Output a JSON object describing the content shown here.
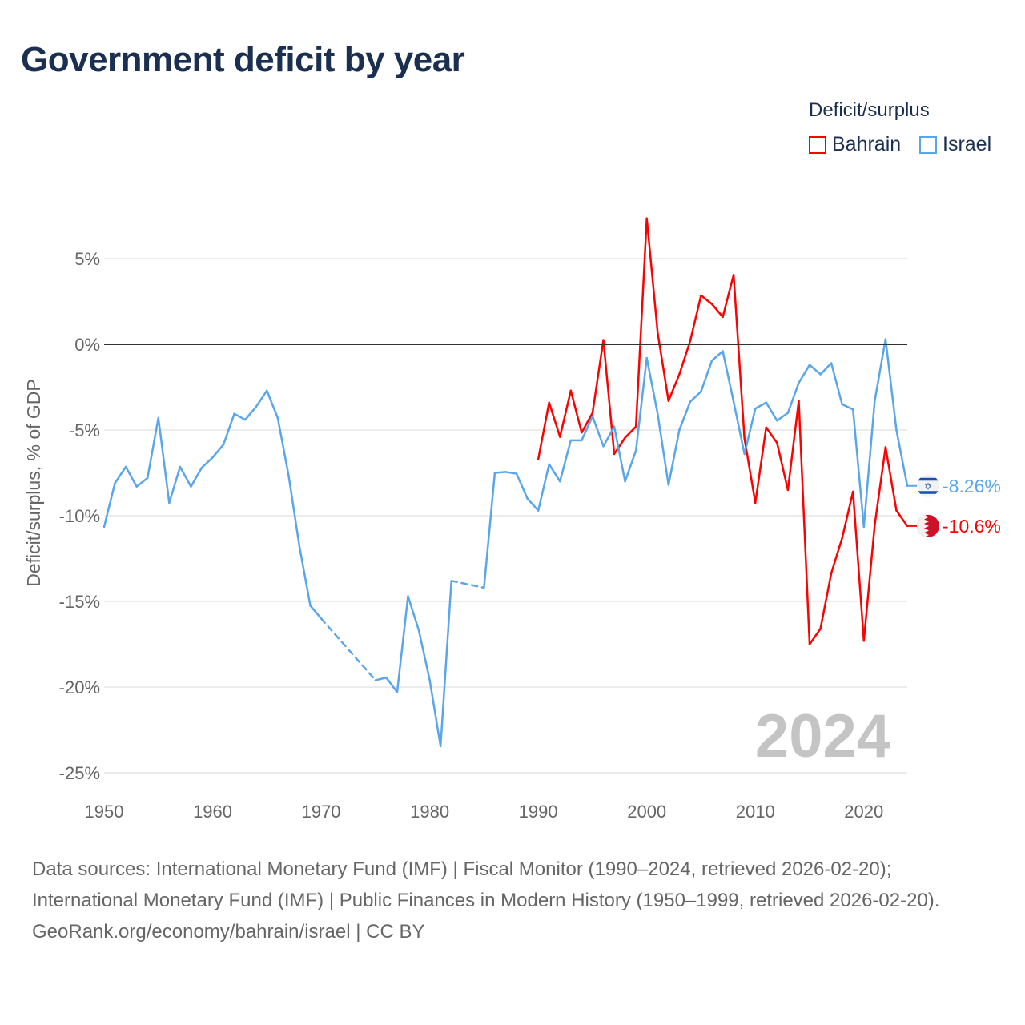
{
  "title": "Government deficit by year",
  "legend": {
    "title": "Deficit/surplus",
    "items": [
      {
        "label": "Bahrain",
        "color": "#ff0000"
      },
      {
        "label": "Israel",
        "color": "#5aa6ea"
      }
    ]
  },
  "watermark_year": "2024",
  "footer": {
    "sources": "Data sources: International Monetary Fund (IMF) | Fiscal Monitor (1990–2024, retrieved 2026-02-20); International Monetary Fund (IMF) | Public Finances in Modern History (1950–1999, retrieved 2026-02-20).",
    "credit": "GeoRank.org/economy/bahrain/israel | CC BY"
  },
  "chart_data": {
    "type": "line",
    "title": "Government deficit by year",
    "xlabel": "",
    "ylabel": "Deficit/surplus, % of GDP",
    "xlim": [
      1950,
      2024
    ],
    "ylim": [
      -25,
      5
    ],
    "x_ticks": [
      1950,
      1960,
      1970,
      1980,
      1990,
      2000,
      2010,
      2020
    ],
    "y_ticks": [
      {
        "v": 5,
        "label": "5%"
      },
      {
        "v": 0,
        "label": "0%"
      },
      {
        "v": -5,
        "label": "-5%"
      },
      {
        "v": -10,
        "label": "-10%"
      },
      {
        "v": -15,
        "label": "-15%"
      },
      {
        "v": -20,
        "label": "-20%"
      },
      {
        "v": -25,
        "label": "-25%"
      }
    ],
    "legend_position": "top-right",
    "series": [
      {
        "name": "Israel",
        "color": "#5aa6ea",
        "end_label": "-8.26%",
        "points": [
          [
            1950,
            -10.65
          ],
          [
            1951,
            -8.1
          ],
          [
            1952,
            -7.15
          ],
          [
            1953,
            -8.3
          ],
          [
            1954,
            -7.8
          ],
          [
            1955,
            -4.3
          ],
          [
            1956,
            -9.25
          ],
          [
            1957,
            -7.15
          ],
          [
            1958,
            -8.3
          ],
          [
            1959,
            -7.2
          ],
          [
            1960,
            -6.6
          ],
          [
            1961,
            -5.85
          ],
          [
            1962,
            -4.05
          ],
          [
            1963,
            -4.4
          ],
          [
            1964,
            -3.65
          ],
          [
            1965,
            -2.7
          ],
          [
            1966,
            -4.3
          ],
          [
            1967,
            -7.65
          ],
          [
            1968,
            -11.8
          ],
          [
            1969,
            -15.25
          ],
          [
            1970,
            -16.0
          ],
          [
            1975,
            -19.6
          ],
          [
            1976,
            -19.45
          ],
          [
            1977,
            -20.3
          ],
          [
            1978,
            -14.7
          ],
          [
            1979,
            -16.7
          ],
          [
            1980,
            -19.6
          ],
          [
            1981,
            -23.45
          ],
          [
            1982,
            -13.8
          ],
          [
            1985,
            -14.2
          ],
          [
            1986,
            -7.5
          ],
          [
            1987,
            -7.45
          ],
          [
            1988,
            -7.55
          ],
          [
            1989,
            -9.0
          ],
          [
            1990,
            -9.7
          ],
          [
            1991,
            -7.0
          ],
          [
            1992,
            -8.0
          ],
          [
            1993,
            -5.6
          ],
          [
            1994,
            -5.6
          ],
          [
            1995,
            -4.2
          ],
          [
            1996,
            -5.95
          ],
          [
            1997,
            -4.8
          ],
          [
            1998,
            -8.0
          ],
          [
            1999,
            -6.2
          ],
          [
            2000,
            -0.8
          ],
          [
            2001,
            -4.05
          ],
          [
            2002,
            -8.2
          ],
          [
            2003,
            -5.0
          ],
          [
            2004,
            -3.35
          ],
          [
            2005,
            -2.75
          ],
          [
            2006,
            -0.95
          ],
          [
            2007,
            -0.4
          ],
          [
            2008,
            -3.35
          ],
          [
            2009,
            -6.4
          ],
          [
            2010,
            -3.75
          ],
          [
            2011,
            -3.4
          ],
          [
            2012,
            -4.45
          ],
          [
            2013,
            -4.0
          ],
          [
            2014,
            -2.25
          ],
          [
            2015,
            -1.2
          ],
          [
            2016,
            -1.75
          ],
          [
            2017,
            -1.1
          ],
          [
            2018,
            -3.5
          ],
          [
            2019,
            -3.8
          ],
          [
            2020,
            -10.65
          ],
          [
            2021,
            -3.3
          ],
          [
            2022,
            0.3
          ],
          [
            2023,
            -5.0
          ],
          [
            2024,
            -8.26
          ]
        ]
      },
      {
        "name": "Bahrain",
        "color": "#ff0000",
        "end_label": "-10.6%",
        "points": [
          [
            1990,
            -6.7
          ],
          [
            1991,
            -3.4
          ],
          [
            1992,
            -5.4
          ],
          [
            1993,
            -2.7
          ],
          [
            1994,
            -5.15
          ],
          [
            1995,
            -4.0
          ],
          [
            1996,
            0.25
          ],
          [
            1997,
            -6.4
          ],
          [
            1998,
            -5.45
          ],
          [
            1999,
            -4.8
          ],
          [
            2000,
            7.35
          ],
          [
            2001,
            0.7
          ],
          [
            2002,
            -3.3
          ],
          [
            2003,
            -1.75
          ],
          [
            2004,
            0.2
          ],
          [
            2005,
            2.85
          ],
          [
            2006,
            2.35
          ],
          [
            2007,
            1.6
          ],
          [
            2008,
            4.05
          ],
          [
            2009,
            -5.5
          ],
          [
            2010,
            -9.25
          ],
          [
            2011,
            -4.85
          ],
          [
            2012,
            -5.75
          ],
          [
            2013,
            -8.5
          ],
          [
            2014,
            -3.3
          ],
          [
            2015,
            -17.5
          ],
          [
            2016,
            -16.6
          ],
          [
            2017,
            -13.35
          ],
          [
            2018,
            -11.3
          ],
          [
            2019,
            -8.6
          ],
          [
            2020,
            -17.3
          ],
          [
            2021,
            -10.55
          ],
          [
            2022,
            -6.0
          ],
          [
            2023,
            -9.7
          ],
          [
            2024,
            -10.6
          ]
        ]
      }
    ]
  }
}
